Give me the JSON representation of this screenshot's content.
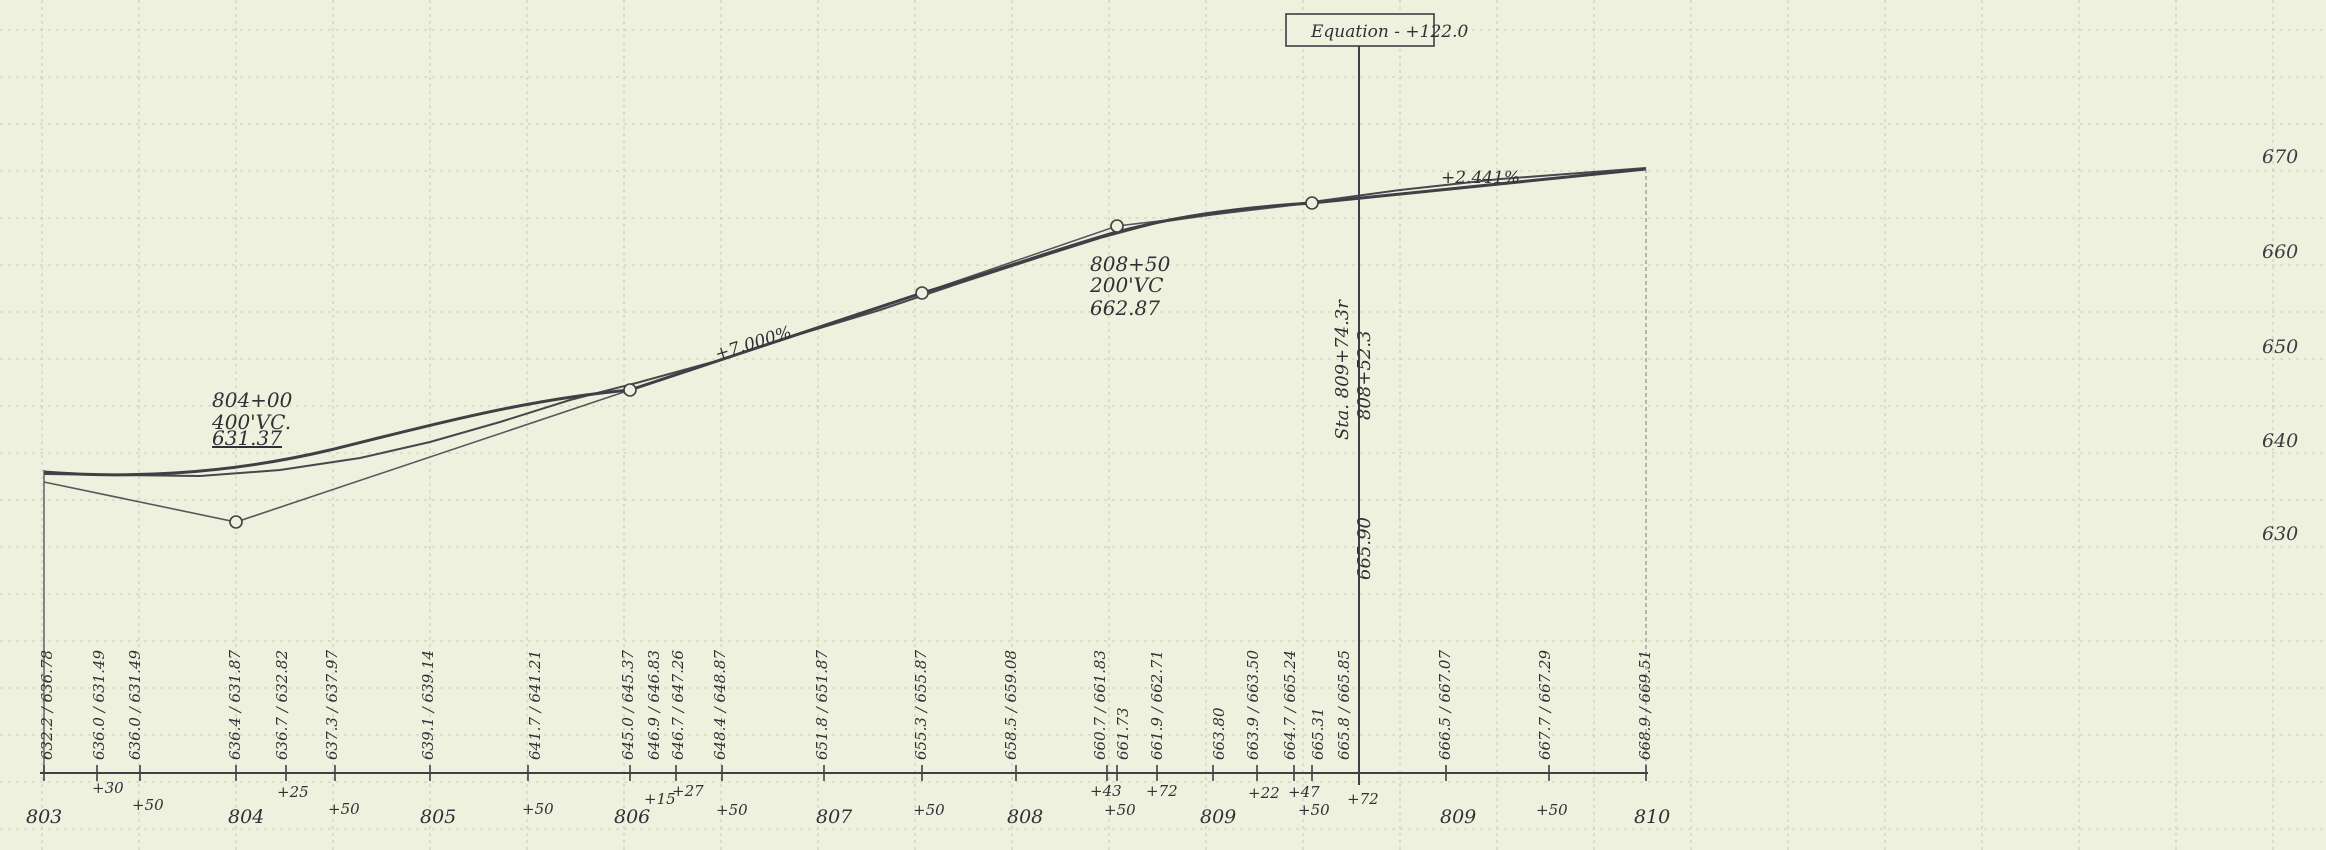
{
  "elevation_labels": [
    "670",
    "660",
    "650",
    "640",
    "630"
  ],
  "stations": [
    "803",
    "804",
    "805",
    "806",
    "807",
    "808",
    "809",
    "809",
    "810"
  ],
  "plus_labels": [
    "+30",
    "+50",
    "+25",
    "+50",
    "+50",
    "+15",
    "+27",
    "+50",
    "+50",
    "+43",
    "+50",
    "+72",
    "+22",
    "+47",
    "+50",
    "+72",
    "+50"
  ],
  "vc1": {
    "station": "804+00",
    "length": "400'VC.",
    "elevation": "631.37"
  },
  "vc2": {
    "station": "808+50",
    "length": "200'VC",
    "elevation": "662.87"
  },
  "grades": {
    "middle": "+7.000%",
    "right": "+2.441%"
  },
  "equation": "Equation - +122.0",
  "station_equation": {
    "line1": "Sta. 809+74.3r",
    "line2": "808+52.3"
  },
  "equation_elevation": "665.90",
  "ground_elevations": [
    "632.2 / 636.78",
    "636.0 / 631.49",
    "636.0 / 631.49",
    "636.4 / 631.87",
    "636.7 / 632.82",
    "637.3 / 637.97",
    "639.1 / 639.14",
    "641.7 / 641.21",
    "645.0 / 645.37",
    "646.9 / 646.83",
    "646.7 / 647.26",
    "648.4 / 648.87",
    "651.8 / 651.87",
    "655.3 / 655.87",
    "658.5 / 659.08",
    "660.7 / 661.83",
    "661.73",
    "661.9 / 662.71",
    "663.80",
    "663.9 / 663.50",
    "664.7 / 665.24",
    "665.31",
    "665.8 / 665.85",
    "666.5 / 667.07",
    "667.7 / 667.29",
    "668.9 / 669.51"
  ]
}
